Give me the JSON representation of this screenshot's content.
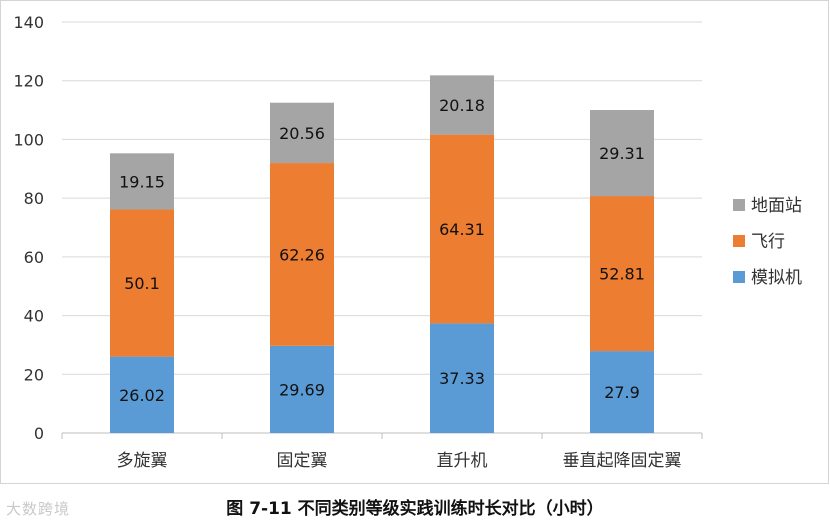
{
  "chart_data": {
    "type": "bar",
    "stacked": true,
    "categories": [
      "多旋翼",
      "固定翼",
      "直升机",
      "垂直起降固定翼"
    ],
    "series": [
      {
        "name": "模拟机",
        "color": "#5b9bd5",
        "values": [
          26.02,
          29.69,
          37.33,
          27.9
        ]
      },
      {
        "name": "飞行",
        "color": "#ed7d31",
        "values": [
          50.1,
          62.26,
          64.31,
          52.81
        ]
      },
      {
        "name": "地面站",
        "color": "#a5a5a5",
        "values": [
          19.15,
          20.56,
          20.18,
          29.31
        ]
      }
    ],
    "data_labels": [
      [
        "26.02",
        "29.69",
        "37.33",
        "27.9"
      ],
      [
        "50.1",
        "62.26",
        "64.31",
        "52.81"
      ],
      [
        "19.15",
        "20.56",
        "20.18",
        "29.31"
      ]
    ],
    "ylim": [
      0,
      140
    ],
    "yticks": [
      "0",
      "20",
      "40",
      "60",
      "80",
      "100",
      "120",
      "140"
    ],
    "grid": true,
    "legend_position": "right",
    "legend_order": [
      2,
      1,
      0
    ]
  },
  "caption": "图 7-11  不同类别等级实践训练时长对比（小时）",
  "watermark": "大数跨境"
}
